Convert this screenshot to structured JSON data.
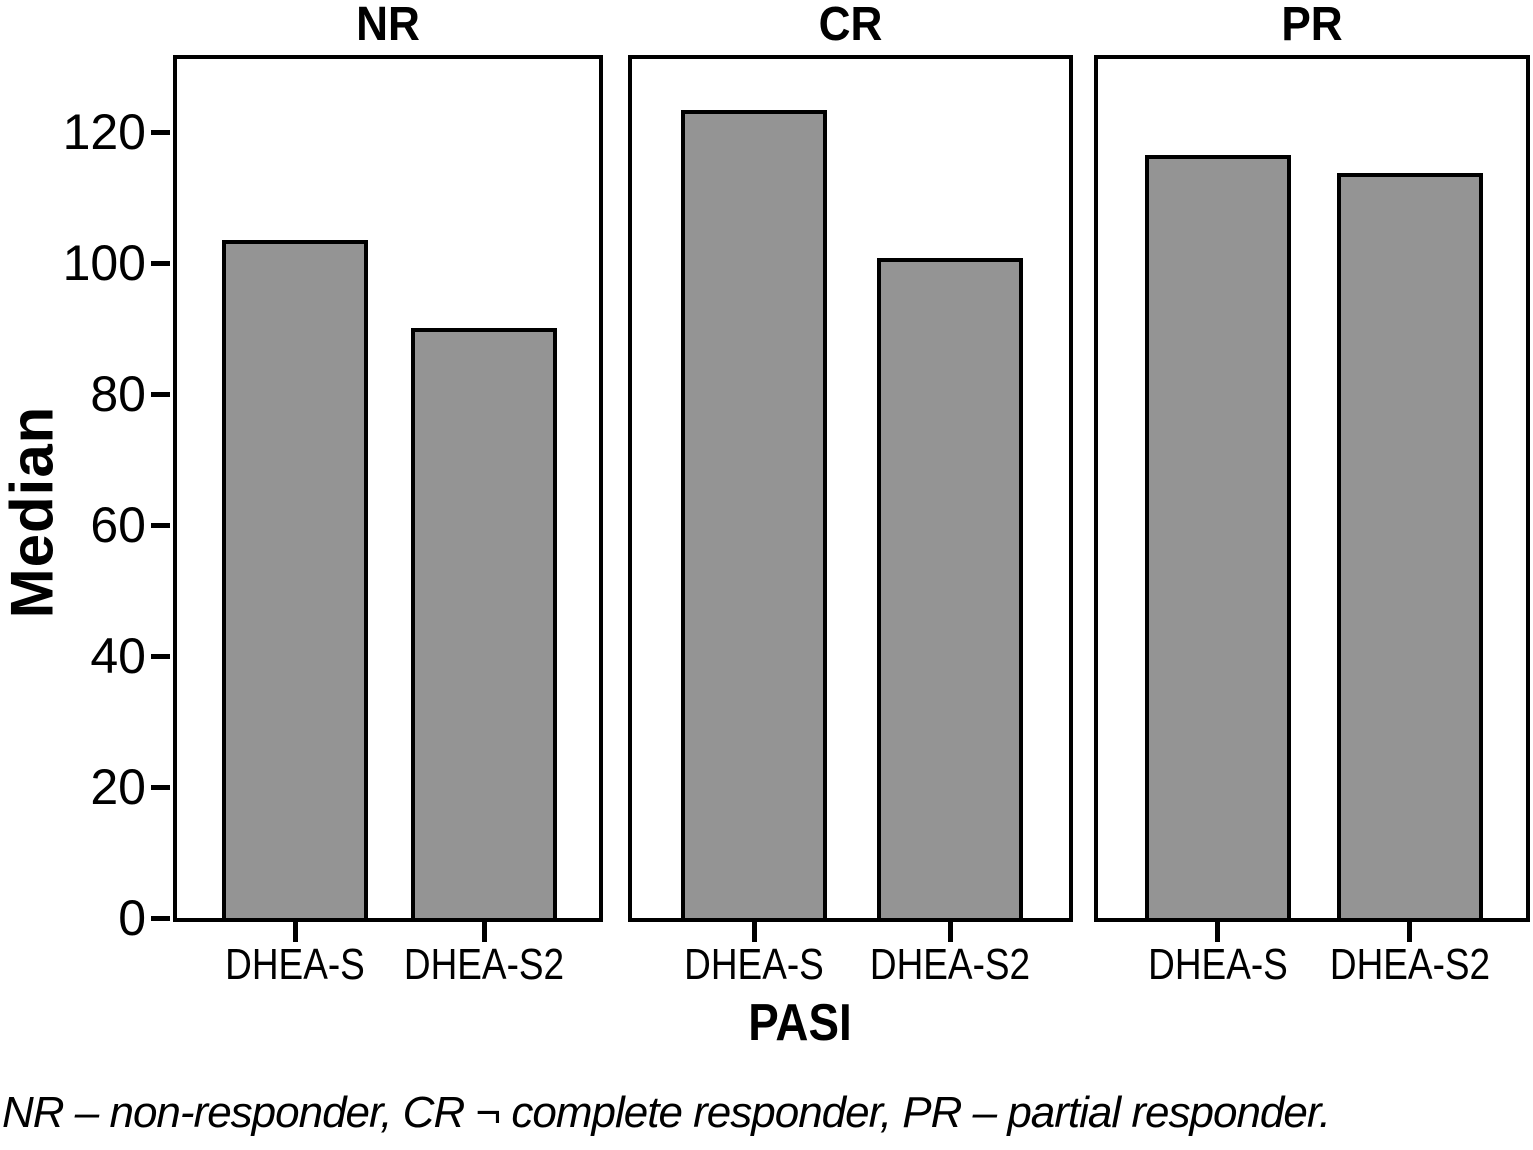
{
  "figure": {
    "caption": "NR – non-responder, CR ¬ complete responder, PR – partial responder."
  },
  "chart_data": {
    "type": "bar",
    "title": "",
    "xlabel": "PASI",
    "ylabel": "Median",
    "panels": [
      {
        "title": "NR",
        "categories": [
          "DHEA-S",
          "DHEA-S2"
        ],
        "values": [
          103.4,
          90.0
        ]
      },
      {
        "title": "CR",
        "categories": [
          "DHEA-S",
          "DHEA-S2"
        ],
        "values": [
          123.3,
          100.7
        ]
      },
      {
        "title": "PR",
        "categories": [
          "DHEA-S",
          "DHEA-S2"
        ],
        "values": [
          116.4,
          113.7
        ]
      }
    ],
    "yticks": [
      0,
      20,
      40,
      60,
      80,
      100,
      120
    ],
    "ylim": [
      0,
      131.8
    ],
    "grid": false,
    "legend": "none",
    "bar_fill": "#949494",
    "bar_border": "#000000",
    "text_color": "#000000",
    "background": "#ffffff"
  }
}
